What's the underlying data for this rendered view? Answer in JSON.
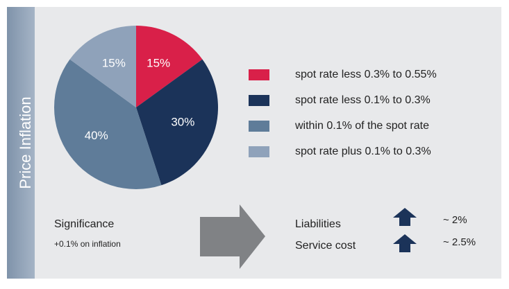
{
  "chart_data": {
    "type": "pie",
    "title": "Price Inflation",
    "categories": [
      "spot rate less 0.3% to 0.55%",
      "spot rate less 0.1% to 0.3%",
      "within 0.1% of the spot rate",
      "spot rate plus 0.1% to 0.3%"
    ],
    "values": [
      15,
      30,
      40,
      15
    ],
    "value_labels": [
      "15%",
      "30%",
      "40%",
      "15%"
    ],
    "colors": [
      "#d92049",
      "#1b3359",
      "#5f7c99",
      "#8fa2ba"
    ]
  },
  "significance": {
    "label": "Significance",
    "note": "+0.1% on inflation"
  },
  "impacts": [
    {
      "label": "Liabilities",
      "change": "~ 2%"
    },
    {
      "label": "Service cost",
      "change": "~ 2.5%"
    }
  ]
}
